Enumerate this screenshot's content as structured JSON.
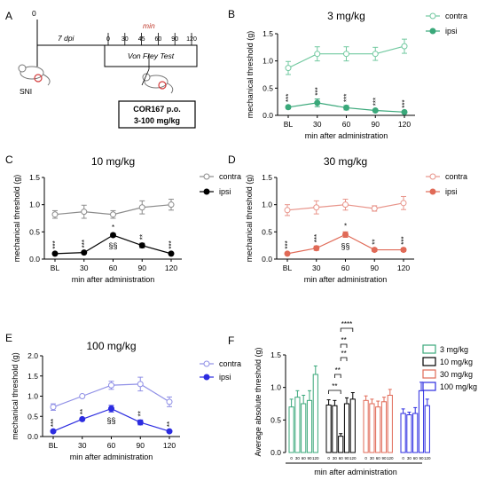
{
  "colors": {
    "green": "#3aa87a",
    "black": "#000000",
    "red": "#e06a57",
    "blue": "#2c2ce0",
    "contra_gray": "#8c8c8c",
    "contra_green": "#72c9a0",
    "contra_red": "#e8948a",
    "contra_blue": "#8f8fe6"
  },
  "panel_a": {
    "label": "A",
    "day0": "0",
    "dpi": "7 dpi",
    "min_label": "min",
    "timepoints": [
      "0",
      "30",
      "45",
      "60",
      "90",
      "120"
    ],
    "test_label": "Von Frey Test",
    "sni_label": "SNI",
    "drug_line1": "COR167 p.o.",
    "drug_line2": "3-100 mg/kg"
  },
  "chart_data": [
    {
      "panel": "B",
      "type": "line",
      "title": "3 mg/kg",
      "xlabel": "min after administration",
      "ylabel": "mechanical threshold (g)",
      "categories": [
        "BL",
        "30",
        "60",
        "90",
        "120"
      ],
      "ylim": [
        0,
        1.5
      ],
      "yticks": [
        "0.0",
        "0.5",
        "1.0",
        "1.5"
      ],
      "color": "#3aa87a",
      "contra_color": "#72c9a0",
      "series": [
        {
          "name": "contra",
          "values": [
            0.87,
            1.13,
            1.13,
            1.13,
            1.27
          ],
          "errors": [
            0.12,
            0.13,
            0.13,
            0.12,
            0.13
          ]
        },
        {
          "name": "ipsi",
          "values": [
            0.15,
            0.23,
            0.14,
            0.09,
            0.06
          ],
          "errors": [
            0.03,
            0.07,
            0.04,
            0.02,
            0.01
          ]
        }
      ],
      "annotations": [
        {
          "index": 0,
          "text": "***"
        },
        {
          "index": 1,
          "text": "***"
        },
        {
          "index": 2,
          "text": "***"
        },
        {
          "index": 3,
          "text": "***"
        },
        {
          "index": 4,
          "text": "***"
        }
      ]
    },
    {
      "panel": "C",
      "type": "line",
      "title": "10 mg/kg",
      "xlabel": "min after administration",
      "ylabel": "mechanical threshold (g)",
      "categories": [
        "BL",
        "30",
        "60",
        "90",
        "120"
      ],
      "ylim": [
        0,
        1.5
      ],
      "yticks": [
        "0.0",
        "0.5",
        "1.0",
        "1.5"
      ],
      "color": "#000000",
      "contra_color": "#8c8c8c",
      "series": [
        {
          "name": "contra",
          "values": [
            0.82,
            0.87,
            0.82,
            0.95,
            1.0
          ],
          "errors": [
            0.07,
            0.12,
            0.07,
            0.12,
            0.1
          ]
        },
        {
          "name": "ipsi",
          "values": [
            0.1,
            0.12,
            0.44,
            0.25,
            0.1
          ],
          "errors": [
            0.02,
            0.02,
            0.03,
            0.04,
            0.02
          ]
        }
      ],
      "annotations": [
        {
          "index": 0,
          "text": "***"
        },
        {
          "index": 1,
          "text": "***"
        },
        {
          "index": 2,
          "text": "*"
        },
        {
          "index": 3,
          "text": "**"
        },
        {
          "index": 4,
          "text": "***"
        }
      ],
      "section_marks": [
        {
          "index": 2,
          "text": "§§"
        }
      ]
    },
    {
      "panel": "D",
      "type": "line",
      "title": "30 mg/kg",
      "xlabel": "min after administration",
      "ylabel": "mechanical threshold (g)",
      "categories": [
        "BL",
        "30",
        "60",
        "90",
        "120"
      ],
      "ylim": [
        0,
        1.5
      ],
      "yticks": [
        "0.0",
        "0.5",
        "1.0",
        "1.5"
      ],
      "color": "#e06a57",
      "contra_color": "#e8948a",
      "series": [
        {
          "name": "contra",
          "values": [
            0.9,
            0.95,
            1.0,
            0.93,
            1.03
          ],
          "errors": [
            0.1,
            0.12,
            0.1,
            0.05,
            0.12
          ]
        },
        {
          "name": "ipsi",
          "values": [
            0.1,
            0.2,
            0.45,
            0.17,
            0.17
          ],
          "errors": [
            0.02,
            0.04,
            0.05,
            0.03,
            0.03
          ]
        }
      ],
      "annotations": [
        {
          "index": 0,
          "text": "***"
        },
        {
          "index": 1,
          "text": "***"
        },
        {
          "index": 2,
          "text": "*"
        },
        {
          "index": 3,
          "text": "**"
        },
        {
          "index": 4,
          "text": "***"
        }
      ],
      "section_marks": [
        {
          "index": 2,
          "text": "§§"
        }
      ]
    },
    {
      "panel": "E",
      "type": "line",
      "title": "100 mg/kg",
      "xlabel": "min after administration",
      "ylabel": "mechanical threshold (g)",
      "categories": [
        "BL",
        "30",
        "60",
        "90",
        "120"
      ],
      "ylim": [
        0,
        2.0
      ],
      "yticks": [
        "0.0",
        "0.5",
        "1.0",
        "1.5",
        "2.0"
      ],
      "color": "#2c2ce0",
      "contra_color": "#8f8fe6",
      "series": [
        {
          "name": "contra",
          "values": [
            0.73,
            1.0,
            1.27,
            1.3,
            0.86
          ],
          "errors": [
            0.08,
            0.02,
            0.1,
            0.17,
            0.12
          ]
        },
        {
          "name": "ipsi",
          "values": [
            0.13,
            0.43,
            0.69,
            0.35,
            0.13
          ],
          "errors": [
            0.02,
            0.03,
            0.08,
            0.06,
            0.02
          ]
        }
      ],
      "annotations": [
        {
          "index": 0,
          "text": "***"
        },
        {
          "index": 1,
          "text": "**"
        },
        {
          "index": 3,
          "text": "**"
        },
        {
          "index": 4,
          "text": "**"
        }
      ],
      "section_marks": [
        {
          "index": 2,
          "text": "§§"
        }
      ]
    },
    {
      "panel": "F",
      "type": "bar",
      "title": "",
      "xlabel": "min after administration",
      "ylabel": "Average absolute threshold (g)",
      "ylim": [
        0,
        1.5
      ],
      "yticks": [
        "0.0",
        "0.5",
        "1.0",
        "1.5"
      ],
      "group_tick_labels": [
        "0",
        "30",
        "60",
        "90",
        "120"
      ],
      "series": [
        {
          "name": "3 mg/kg",
          "color": "#3aa87a",
          "values": [
            0.7,
            0.85,
            0.75,
            0.8,
            1.2
          ],
          "errors": [
            0.12,
            0.1,
            0.13,
            0.15,
            0.13
          ]
        },
        {
          "name": "10 mg/kg",
          "color": "#000000",
          "values": [
            0.73,
            0.72,
            0.25,
            0.75,
            0.82
          ],
          "errors": [
            0.08,
            0.08,
            0.04,
            0.09,
            0.1
          ]
        },
        {
          "name": "30 mg/kg",
          "color": "#e06a57",
          "values": [
            0.8,
            0.75,
            0.7,
            0.78,
            0.88
          ],
          "errors": [
            0.07,
            0.07,
            0.09,
            0.07,
            0.09
          ]
        },
        {
          "name": "100 mg/kg",
          "color": "#2c2ce0",
          "values": [
            0.6,
            0.58,
            0.6,
            0.95,
            0.72
          ],
          "errors": [
            0.07,
            0.04,
            0.09,
            0.13,
            0.1
          ]
        }
      ],
      "comparisons": [
        {
          "from": 0,
          "to": 2,
          "text": "**"
        },
        {
          "from": 1,
          "to": 2,
          "text": "**"
        },
        {
          "from": 2,
          "to": 3,
          "text": "**"
        },
        {
          "from": 2,
          "to": 3,
          "text": "**"
        },
        {
          "from": 2,
          "to": 4,
          "text": "****"
        }
      ]
    }
  ]
}
